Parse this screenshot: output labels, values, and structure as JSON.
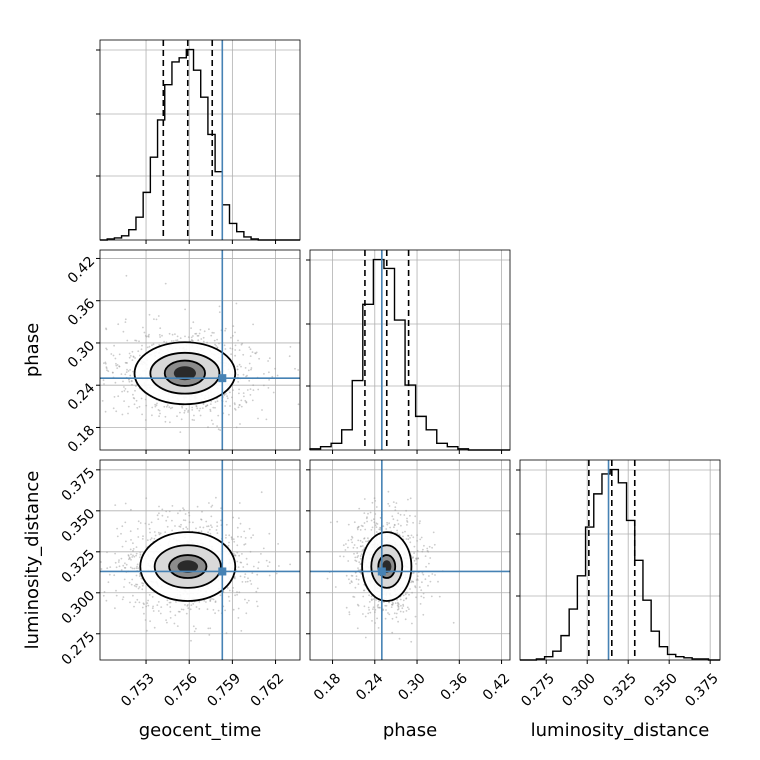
{
  "chart_data": {
    "type": "corner",
    "parameters": [
      "geocent_time",
      "phase",
      "luminosity_distance"
    ],
    "truths": {
      "geocent_time": 0.7583,
      "phase": 0.25,
      "luminosity_distance": 0.313
    },
    "quantiles": {
      "geocent_time": [
        0.7542,
        0.7559,
        0.7576
      ],
      "phase": [
        0.226,
        0.257,
        0.288
      ],
      "luminosity_distance": [
        0.301,
        0.315,
        0.329
      ]
    },
    "ranges": {
      "geocent_time": [
        0.7498,
        0.7637
      ],
      "phase": [
        0.148,
        0.432
      ],
      "luminosity_distance": [
        0.259,
        0.381
      ]
    },
    "ticks": {
      "geocent_time": [
        "0.753",
        "0.756",
        "0.759",
        "0.762"
      ],
      "phase": [
        "0.18",
        "0.24",
        "0.30",
        "0.36",
        "0.42"
      ],
      "luminosity_distance": [
        "0.275",
        "0.300",
        "0.325",
        "0.350",
        "0.375"
      ]
    },
    "histograms": {
      "geocent_time": {
        "edges": [
          0.7498,
          0.7503,
          0.7508,
          0.7513,
          0.7518,
          0.7523,
          0.7528,
          0.7533,
          0.7538,
          0.7543,
          0.7548,
          0.7553,
          0.7558,
          0.7563,
          0.7568,
          0.7573,
          0.7578,
          0.7583,
          0.7588,
          0.7593,
          0.7598,
          0.7603,
          0.7608,
          0.7613,
          0.7618,
          0.7623,
          0.7628,
          0.7633,
          0.7637
        ],
        "counts": [
          0,
          1,
          2,
          4,
          10,
          22,
          46,
          80,
          116,
          150,
          172,
          176,
          184,
          164,
          138,
          102,
          66,
          34,
          16,
          8,
          3,
          1,
          0,
          0,
          0,
          0,
          0,
          0
        ]
      },
      "phase": {
        "edges": [
          0.148,
          0.163,
          0.178,
          0.193,
          0.208,
          0.223,
          0.238,
          0.253,
          0.268,
          0.283,
          0.298,
          0.313,
          0.328,
          0.343,
          0.358,
          0.373,
          0.388,
          0.403,
          0.418,
          0.432
        ],
        "counts": [
          1,
          3,
          6,
          18,
          62,
          130,
          170,
          162,
          116,
          58,
          30,
          18,
          6,
          3,
          1,
          0,
          0,
          0,
          0
        ]
      },
      "luminosity_distance": {
        "edges": [
          0.259,
          0.264,
          0.269,
          0.274,
          0.279,
          0.284,
          0.289,
          0.294,
          0.299,
          0.304,
          0.309,
          0.314,
          0.319,
          0.324,
          0.329,
          0.334,
          0.339,
          0.344,
          0.349,
          0.354,
          0.359,
          0.364,
          0.369,
          0.374,
          0.381
        ],
        "counts": [
          0,
          0,
          1,
          3,
          8,
          22,
          46,
          76,
          120,
          150,
          168,
          172,
          160,
          126,
          90,
          54,
          26,
          12,
          5,
          3,
          2,
          1,
          1,
          0
        ]
      }
    },
    "contours": {
      "phase_vs_geocent_time": {
        "center": [
          0.7557,
          0.257
        ],
        "radii": [
          [
            0.0014,
            0.018
          ],
          [
            0.0024,
            0.029
          ],
          [
            0.0035,
            0.044
          ]
        ]
      },
      "luminosity_distance_vs_geocent_time": {
        "center": [
          0.7559,
          0.316
        ],
        "radii": [
          [
            0.0013,
            0.007
          ],
          [
            0.0023,
            0.013
          ],
          [
            0.0033,
            0.021
          ]
        ]
      },
      "luminosity_distance_vs_phase": {
        "center": [
          0.257,
          0.316
        ],
        "radii": [
          [
            0.012,
            0.007
          ],
          [
            0.022,
            0.013
          ],
          [
            0.035,
            0.021
          ]
        ]
      }
    },
    "xlabels": [
      "geocent_time",
      "phase",
      "luminosity_distance"
    ],
    "ylabels": [
      "",
      "phase",
      "luminosity_distance"
    ],
    "grid": true
  }
}
